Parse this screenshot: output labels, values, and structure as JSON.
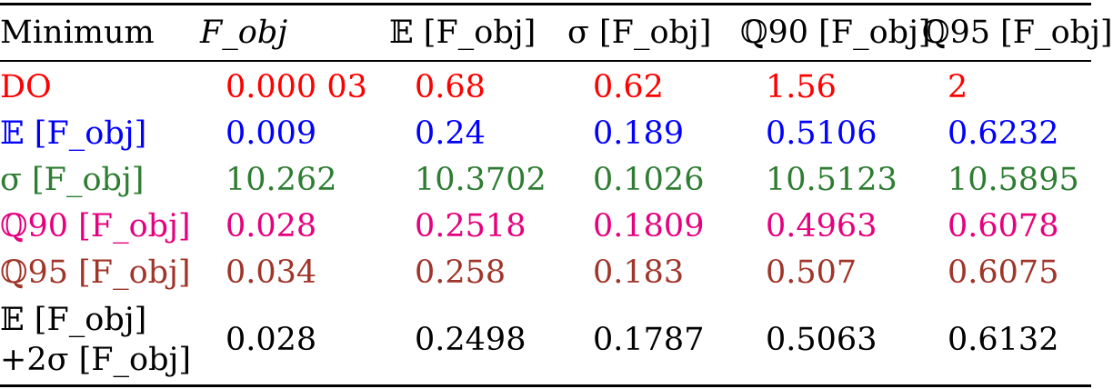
{
  "colors": {
    "rule": "#000000",
    "DO": "#ff0000",
    "mean": "#0000ff",
    "std": "#2e7d32",
    "q90": "#e6007e",
    "q95": "#a0352a",
    "combo": "#000000"
  },
  "header": {
    "col0": "Minimum",
    "col1": "F_obj",
    "col2": "𝔼 [F_obj]",
    "col3": "σ [F_obj]",
    "col4": "ℚ90 [F_obj]",
    "col5": "ℚ95 [F_obj]"
  },
  "rows": [
    {
      "label": "DO",
      "color_key": "DO",
      "values": [
        "0.000 03",
        "0.68",
        "0.62",
        "1.56",
        "2"
      ]
    },
    {
      "label": "𝔼 [F_obj]",
      "color_key": "mean",
      "values": [
        "0.009",
        "0.24",
        "0.189",
        "0.5106",
        "0.6232"
      ]
    },
    {
      "label": "σ [F_obj]",
      "color_key": "std",
      "values": [
        "10.262",
        "10.3702",
        "0.1026",
        "10.5123",
        "10.5895"
      ]
    },
    {
      "label": "ℚ90 [F_obj]",
      "color_key": "q90",
      "values": [
        "0.028",
        "0.2518",
        "0.1809",
        "0.4963",
        "0.6078"
      ]
    },
    {
      "label": "ℚ95 [F_obj]",
      "color_key": "q95",
      "values": [
        "0.034",
        "0.258",
        "0.183",
        "0.507",
        "0.6075"
      ]
    },
    {
      "label_line1": "𝔼 [F_obj]",
      "label_line2": "+2σ [F_obj]",
      "color_key": "combo",
      "values": [
        "0.028",
        "0.2498",
        "0.1787",
        "0.5063",
        "0.6132"
      ]
    }
  ]
}
